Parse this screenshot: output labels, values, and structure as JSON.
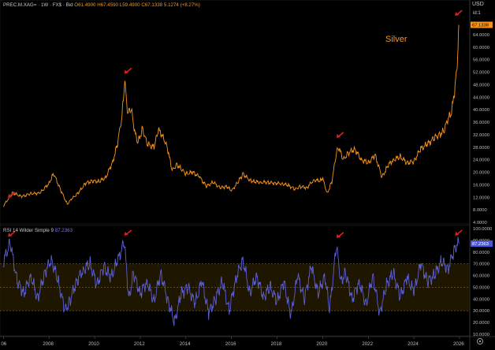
{
  "header": {
    "symbol": "PREC.M.XAG=",
    "interval": "1W",
    "source": "FX$",
    "side": "Bid",
    "open": "O61.4900",
    "high": "H67.4590",
    "low": "L59.4900",
    "close": "C67.1338",
    "change": "5.1274 (+8.27%)"
  },
  "currency_label": "USD",
  "scale_label": "id:1",
  "title_annotation": "Silver",
  "rsi_header": {
    "label": "RSI 14 Wilder Simple 9",
    "value": "87.2363"
  },
  "colors": {
    "price": "#f7931a",
    "rsi": "#5b5fd6",
    "band": "#2a1e00",
    "arrow": "#e41e1e",
    "background": "#000000"
  },
  "icons": [
    "settings-icon",
    "arrow-marker"
  ],
  "chart_data": [
    {
      "type": "line",
      "title": "",
      "series": [
        {
          "name": "",
          "x": [
            2006.0,
            2006.4,
            2006.8,
            2007.2,
            2007.6,
            2008.0,
            2008.2,
            2008.5,
            2008.8,
            2009.0,
            2009.3,
            2009.6,
            2009.9,
            2010.2,
            2010.5,
            2010.8,
            2011.0,
            2011.2,
            2011.32,
            2011.45,
            2011.6,
            2011.75,
            2011.9,
            2012.1,
            2012.3,
            2012.6,
            2012.8,
            2013.0,
            2013.2,
            2013.4,
            2013.6,
            2013.8,
            2014.0,
            2014.3,
            2014.6,
            2014.9,
            2015.2,
            2015.5,
            2015.8,
            2016.0,
            2016.3,
            2016.5,
            2016.8,
            2017.0,
            2017.3,
            2017.6,
            2017.9,
            2018.2,
            2018.5,
            2018.8,
            2019.0,
            2019.3,
            2019.6,
            2019.9,
            2020.0,
            2020.2,
            2020.4,
            2020.6,
            2020.7,
            2020.9,
            2021.1,
            2021.4,
            2021.7,
            2022.0,
            2022.3,
            2022.6,
            2022.9,
            2023.1,
            2023.4,
            2023.7,
            2024.0,
            2024.3,
            2024.6,
            2024.9,
            2025.1,
            2025.3,
            2025.5,
            2025.65,
            2025.8,
            2025.9,
            2025.97
          ],
          "y": [
            9.2,
            13.5,
            12.2,
            13.2,
            13.3,
            16.5,
            19.6,
            14.5,
            9.8,
            11.5,
            13.5,
            16.5,
            17.2,
            17.0,
            18.5,
            23.5,
            29.0,
            38.0,
            49.0,
            38.5,
            40.5,
            33.0,
            29.5,
            34.0,
            29.0,
            28.0,
            33.5,
            31.5,
            27.5,
            20.5,
            22.5,
            21.0,
            19.5,
            20.0,
            18.5,
            15.5,
            16.8,
            15.0,
            15.5,
            14.0,
            17.0,
            19.5,
            17.5,
            17.0,
            16.8,
            16.8,
            16.5,
            16.4,
            15.8,
            14.5,
            15.5,
            15.0,
            17.5,
            17.3,
            18.0,
            13.2,
            17.0,
            26.0,
            28.0,
            24.0,
            26.0,
            27.5,
            24.0,
            23.0,
            25.5,
            18.5,
            22.5,
            24.0,
            25.0,
            23.0,
            23.5,
            27.5,
            29.0,
            31.0,
            32.0,
            33.0,
            37.0,
            39.0,
            47.0,
            54.0,
            67.13
          ]
        }
      ],
      "ylim": [
        4,
        66
      ],
      "y_ticks": [
        "4.0000",
        "8.0000",
        "12.0000",
        "16.0000",
        "20.0000",
        "24.0000",
        "28.0000",
        "32.0000",
        "36.0000",
        "40.0000",
        "44.0000",
        "48.0000",
        "52.0000",
        "56.0000",
        "60.0000",
        "64.0000"
      ],
      "last_value_label": "67.1338",
      "annotation": "Silver",
      "grid": false
    },
    {
      "type": "line",
      "title": "RSI 14 Wilder Simple 9",
      "series": [
        {
          "name": "RSI 14 Wilder Simple 9",
          "x": [
            2006.0,
            2006.3,
            2006.6,
            2006.9,
            2007.2,
            2007.5,
            2007.8,
            2008.1,
            2008.4,
            2008.7,
            2008.9,
            2009.2,
            2009.5,
            2009.8,
            2010.1,
            2010.4,
            2010.7,
            2011.0,
            2011.3,
            2011.5,
            2011.7,
            2012.0,
            2012.3,
            2012.6,
            2012.9,
            2013.2,
            2013.5,
            2013.8,
            2014.1,
            2014.4,
            2014.7,
            2015.0,
            2015.3,
            2015.6,
            2015.9,
            2016.2,
            2016.5,
            2016.8,
            2017.1,
            2017.4,
            2017.7,
            2018.0,
            2018.3,
            2018.6,
            2018.9,
            2019.2,
            2019.5,
            2019.8,
            2020.1,
            2020.3,
            2020.6,
            2020.8,
            2021.0,
            2021.3,
            2021.6,
            2021.9,
            2022.2,
            2022.5,
            2022.8,
            2023.1,
            2023.4,
            2023.7,
            2024.0,
            2024.3,
            2024.6,
            2024.9,
            2025.2,
            2025.5,
            2025.8,
            2025.97
          ],
          "y": [
            72,
            88,
            55,
            45,
            60,
            40,
            62,
            74,
            55,
            30,
            38,
            55,
            65,
            70,
            52,
            68,
            58,
            72,
            89,
            40,
            62,
            45,
            55,
            38,
            62,
            40,
            20,
            45,
            50,
            36,
            55,
            28,
            40,
            55,
            30,
            58,
            74,
            45,
            60,
            42,
            50,
            38,
            55,
            25,
            60,
            40,
            68,
            44,
            60,
            30,
            86,
            55,
            62,
            40,
            55,
            35,
            60,
            28,
            52,
            62,
            42,
            58,
            46,
            70,
            55,
            60,
            72,
            66,
            84,
            87.24
          ]
        }
      ],
      "ylim": [
        10,
        100
      ],
      "y_ticks": [
        "10.0000",
        "20.0000",
        "30.0000",
        "40.0000",
        "50.0000",
        "60.0000",
        "70.0000",
        "80.0000",
        "90.0000",
        "100.0000"
      ],
      "band": [
        30,
        70
      ],
      "last_value_label": "87.2363",
      "grid": false
    }
  ],
  "x_axis_ticks": [
    "06",
    "2008",
    "2010",
    "2012",
    "2014",
    "2016",
    "2018",
    "2020",
    "2022",
    "2024",
    "2026"
  ],
  "price_arrows": [
    [
      2006.2,
      11.8
    ],
    [
      2011.3,
      51.5
    ],
    [
      2020.6,
      31.0
    ],
    [
      2025.8,
      70.0
    ]
  ],
  "rsi_arrows": [
    [
      2006.2,
      93
    ],
    [
      2011.3,
      94
    ],
    [
      2020.6,
      92
    ],
    [
      2025.8,
      94
    ]
  ]
}
